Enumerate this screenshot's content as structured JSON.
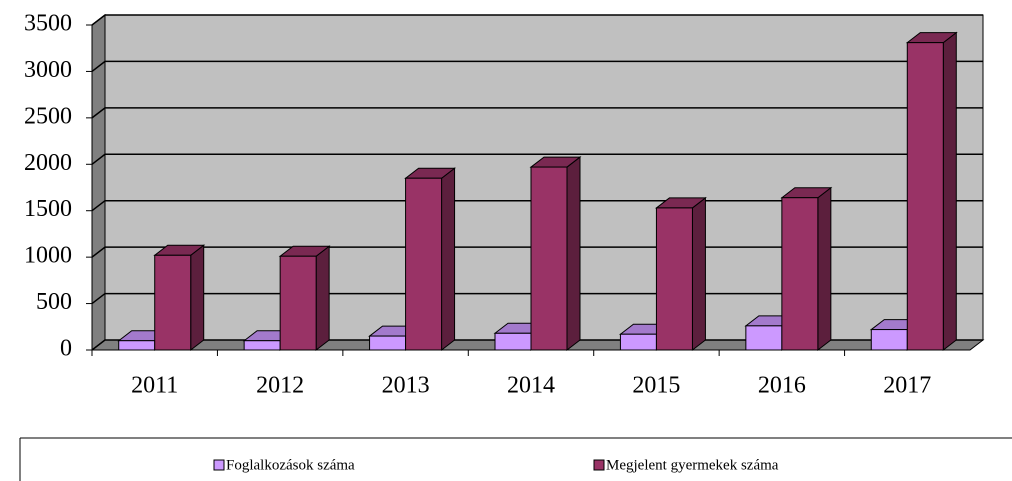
{
  "chart_data": {
    "type": "bar",
    "categories": [
      "2011",
      "2012",
      "2013",
      "2014",
      "2015",
      "2016",
      "2017"
    ],
    "series": [
      {
        "name": "Foglalkozások száma",
        "color": "#cc99ff",
        "values": [
          100,
          100,
          150,
          180,
          170,
          260,
          220
        ]
      },
      {
        "name": "Megjelent gyermekek száma",
        "color": "#993366",
        "values": [
          1020,
          1010,
          1850,
          1970,
          1530,
          1640,
          3310
        ]
      }
    ],
    "ylim": [
      0,
      3500
    ],
    "yticks": [
      0,
      500,
      1000,
      1500,
      2000,
      2500,
      3000,
      3500
    ],
    "grid": true,
    "legend": "bottom",
    "wall_color": "#c0c0c0"
  }
}
